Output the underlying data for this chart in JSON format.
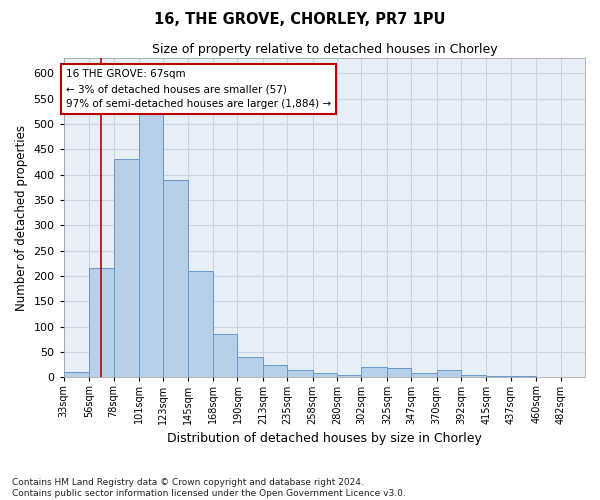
{
  "title1": "16, THE GROVE, CHORLEY, PR7 1PU",
  "title2": "Size of property relative to detached houses in Chorley",
  "xlabel": "Distribution of detached houses by size in Chorley",
  "ylabel": "Number of detached properties",
  "footnote": "Contains HM Land Registry data © Crown copyright and database right 2024.\nContains public sector information licensed under the Open Government Licence v3.0.",
  "bin_labels": [
    "33sqm",
    "56sqm",
    "78sqm",
    "101sqm",
    "123sqm",
    "145sqm",
    "168sqm",
    "190sqm",
    "213sqm",
    "235sqm",
    "258sqm",
    "280sqm",
    "302sqm",
    "325sqm",
    "347sqm",
    "370sqm",
    "392sqm",
    "415sqm",
    "437sqm",
    "460sqm",
    "482sqm"
  ],
  "bar_heights": [
    10,
    215,
    430,
    530,
    390,
    210,
    85,
    40,
    25,
    15,
    8,
    5,
    20,
    18,
    8,
    15,
    4,
    2,
    2,
    1,
    1
  ],
  "bar_color": "#b8cfe8",
  "bar_edge_color": "#6699cc",
  "grid_color": "#c8d4e4",
  "background_color": "#e8eef6",
  "vline_x_index": 1,
  "vline_color": "#bb0000",
  "annotation_text": "16 THE GROVE: 67sqm\n← 3% of detached houses are smaller (57)\n97% of semi-detached houses are larger (1,884) →",
  "annotation_box_facecolor": "#ffffff",
  "annotation_box_edgecolor": "#bb0000",
  "ylim": [
    0,
    630
  ],
  "yticks": [
    0,
    50,
    100,
    150,
    200,
    250,
    300,
    350,
    400,
    450,
    500,
    550,
    600
  ],
  "bin_edges": [
    33,
    56,
    78,
    101,
    123,
    145,
    168,
    190,
    213,
    235,
    258,
    280,
    302,
    325,
    347,
    370,
    392,
    415,
    437,
    460,
    482,
    504
  ],
  "vline_x": 67
}
